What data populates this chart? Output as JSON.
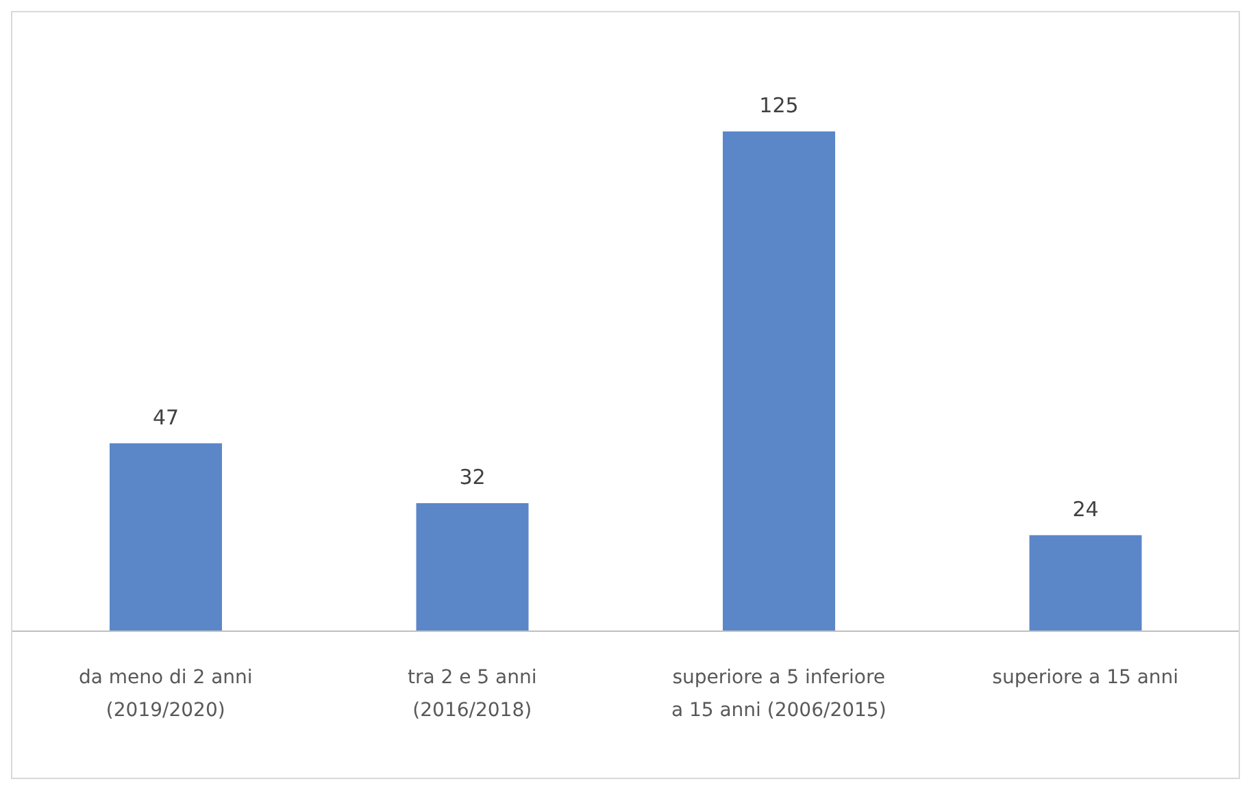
{
  "chart_data": {
    "type": "bar",
    "categories": [
      "da meno di 2 anni (2019/2020)",
      "tra 2 e 5 anni (2016/2018)",
      "superiore a 5 inferiore a 15 anni (2006/2015)",
      "superiore a 15 anni"
    ],
    "values": [
      47,
      32,
      125,
      24
    ],
    "color": "#5b87c9",
    "data_labels": true
  }
}
